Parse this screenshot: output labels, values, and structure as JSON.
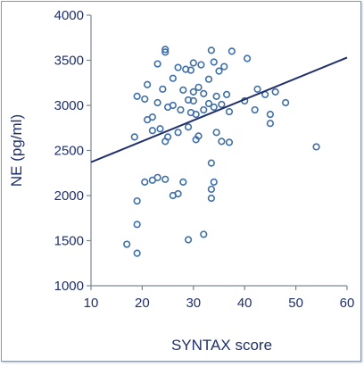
{
  "chart_data": {
    "type": "scatter",
    "title": "",
    "xlabel": "SYNTAX score",
    "ylabel": "NE (pg/ml)",
    "xlim": [
      10,
      60
    ],
    "ylim": [
      1000,
      4000
    ],
    "xticks": [
      10,
      20,
      30,
      40,
      50,
      60
    ],
    "yticks": [
      1000,
      1500,
      2000,
      2500,
      3000,
      3500,
      4000
    ],
    "grid": false,
    "colors": {
      "points": "#3e6fa8",
      "trendline": "#1f2f6b",
      "text": "#1f2f6b",
      "axis": "#7a8695"
    },
    "trendline": {
      "x": [
        10,
        60
      ],
      "y": [
        2370,
        3530
      ]
    },
    "series": [
      {
        "x": [
          24.5,
          24.5,
          33.5,
          37.5,
          40.5,
          23,
          27,
          30,
          31.5,
          34,
          36,
          28.5,
          29.5,
          35,
          26,
          33,
          21,
          24,
          28,
          30,
          31,
          32,
          34.5,
          36.5,
          42.5,
          44,
          46,
          19,
          20.5,
          23,
          26,
          29,
          30,
          33,
          35.5,
          25,
          27.5,
          29.5,
          30.5,
          32,
          34,
          37,
          40,
          42,
          45,
          48,
          22,
          21,
          23.5,
          29,
          34.5,
          18.5,
          22,
          25,
          27,
          31,
          45,
          30.5,
          24.5,
          35.5,
          37,
          54,
          24.5,
          33.5,
          20.5,
          22,
          23,
          28,
          34,
          33.5,
          26,
          27,
          33.5,
          19,
          19,
          32,
          29,
          17,
          19
        ],
        "y": [
          3620,
          3590,
          3610,
          3600,
          3520,
          3460,
          3420,
          3470,
          3450,
          3480,
          3430,
          3400,
          3390,
          3380,
          3300,
          3290,
          3230,
          3180,
          3170,
          3150,
          3200,
          3130,
          3100,
          3120,
          3180,
          3120,
          3150,
          3100,
          3070,
          3030,
          3000,
          3060,
          3050,
          3020,
          3010,
          2980,
          2950,
          2920,
          2900,
          2950,
          2980,
          2930,
          3050,
          2950,
          2900,
          3030,
          2870,
          2840,
          2740,
          2760,
          2700,
          2650,
          2720,
          2650,
          2700,
          2660,
          2800,
          2620,
          2600,
          2600,
          2590,
          2540,
          2180,
          2360,
          2150,
          2170,
          2200,
          2150,
          2150,
          2070,
          2000,
          2020,
          1970,
          1940,
          1680,
          1570,
          1510,
          1460,
          1360
        ]
      }
    ]
  }
}
